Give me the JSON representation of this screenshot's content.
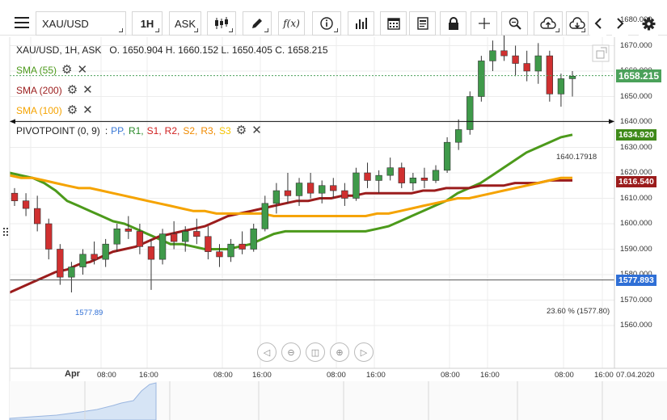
{
  "toolbar": {
    "symbol": "XAU/USD",
    "timeframe": "1H",
    "price_side": "ASK",
    "buttons": [
      "menu-icon",
      "candles-icon",
      "pencil-icon",
      "function-icon",
      "info-icon",
      "bars-icon",
      "calendar-icon",
      "document-icon",
      "lock-icon",
      "crosshair-icon",
      "zoom-icon",
      "cloud-upload-icon",
      "cloud-download-icon",
      "chevron-left-icon",
      "chevron-right-icon",
      "gear-icon"
    ],
    "function_label": "f(x)"
  },
  "header": {
    "instrument": "XAU/USD, 1H, ASK",
    "ohlc": "O. 1650.904  H. 1660.152  L. 1650.405  C. 1658.215"
  },
  "indicators": [
    {
      "label": "SMA (55)",
      "color": "#4c9a1b"
    },
    {
      "label": "SMA (200)",
      "color": "#9b1c1c"
    },
    {
      "label": "SMA (100)",
      "color": "#f5a300"
    },
    {
      "label": "PIVOTPOINT (0, 9)",
      "color": "#222"
    }
  ],
  "pivot_labels": [
    {
      "t": "PP",
      "c": "#3a78d6"
    },
    {
      "t": "R1",
      "c": "#2a8a2a"
    },
    {
      "t": "S1",
      "c": "#d02020"
    },
    {
      "t": "R2",
      "c": "#d02020"
    },
    {
      "t": "S2",
      "c": "#f08a00"
    },
    {
      "t": "R3",
      "c": "#f08a00"
    },
    {
      "t": "S3",
      "c": "#f5c400"
    }
  ],
  "price_axis": {
    "ticks": [
      "1680.000",
      "1670.000",
      "1660.000",
      "1650.000",
      "1640.000",
      "1630.000",
      "1620.000",
      "1610.000",
      "1600.000",
      "1590.000",
      "1580.000",
      "1570.000",
      "1560.000"
    ]
  },
  "price_tags": {
    "last": {
      "value": "1658.215",
      "color": "#4ba15a"
    },
    "sma55": {
      "value": "1634.920",
      "color": "#3f8a1a"
    },
    "sma200": {
      "value": "1616.540",
      "color": "#9b1c1c"
    },
    "fib": {
      "value": "1577.893",
      "color": "#2f6fd6"
    }
  },
  "annotations": {
    "hline": "1640.17918",
    "fib": "23.60 % (1577.80)",
    "fib_left": "1577.89"
  },
  "time_axis": {
    "labels": [
      "Apr",
      "08:00",
      "16:00",
      "08:00",
      "16:00",
      "08:00",
      "16:00",
      "08:00",
      "16:00",
      "08:00",
      "16:00",
      "07.04.2020"
    ]
  },
  "nav_buttons": [
    "◁",
    "⊖",
    "◫",
    "⊕",
    "▷"
  ],
  "colors": {
    "bull": "#3f9a4a",
    "bear": "#d03030",
    "grid": "#ececec"
  },
  "chart_data": {
    "type": "candlestick",
    "interval": "1H",
    "ylim": [
      1556,
      1684
    ],
    "series": [
      {
        "name": "SMA (55)",
        "values": [
          1620,
          1619,
          1618,
          1616,
          1613,
          1609,
          1607,
          1605,
          1603,
          1601,
          1600,
          1598,
          1596,
          1594,
          1592,
          1592,
          1591,
          1590,
          1590,
          1590,
          1591,
          1592,
          1594,
          1596,
          1597,
          1597,
          1597,
          1597,
          1597,
          1597,
          1597,
          1597,
          1598,
          1599,
          1601,
          1603,
          1605,
          1607,
          1609,
          1612,
          1614,
          1616,
          1619,
          1622,
          1625,
          1628,
          1630,
          1632,
          1634,
          1635
        ]
      },
      {
        "name": "SMA (200)",
        "values": [
          1573,
          1575,
          1577,
          1579,
          1581,
          1582,
          1584,
          1585,
          1587,
          1589,
          1590,
          1591,
          1593,
          1595,
          1596,
          1597,
          1598,
          1599,
          1601,
          1603,
          1604,
          1605,
          1606,
          1607,
          1608,
          1609,
          1609,
          1610,
          1610,
          1611,
          1611,
          1612,
          1612,
          1612,
          1612,
          1612,
          1613,
          1613,
          1614,
          1614,
          1614,
          1615,
          1615,
          1615,
          1616,
          1616,
          1616,
          1617,
          1617,
          1617
        ]
      },
      {
        "name": "SMA (100)",
        "values": [
          1619,
          1618,
          1618,
          1617,
          1616,
          1615,
          1614,
          1614,
          1613,
          1612,
          1611,
          1610,
          1609,
          1608,
          1607,
          1606,
          1605,
          1605,
          1604,
          1604,
          1604,
          1604,
          1604,
          1603,
          1603,
          1603,
          1603,
          1603,
          1603,
          1603,
          1603,
          1603,
          1604,
          1604,
          1605,
          1606,
          1607,
          1608,
          1609,
          1610,
          1610,
          1611,
          1612,
          1613,
          1614,
          1615,
          1616,
          1617,
          1618,
          1618
        ]
      }
    ],
    "candles": [
      [
        1612,
        1614,
        1607,
        1609
      ],
      [
        1609,
        1612,
        1603,
        1606
      ],
      [
        1606,
        1611,
        1597,
        1600
      ],
      [
        1600,
        1602,
        1586,
        1590
      ],
      [
        1590,
        1592,
        1576,
        1579
      ],
      [
        1579,
        1585,
        1573,
        1583
      ],
      [
        1583,
        1590,
        1580,
        1588
      ],
      [
        1588,
        1593,
        1584,
        1586
      ],
      [
        1586,
        1594,
        1583,
        1592
      ],
      [
        1592,
        1600,
        1589,
        1598
      ],
      [
        1598,
        1603,
        1594,
        1597
      ],
      [
        1597,
        1600,
        1588,
        1591
      ],
      [
        1591,
        1594,
        1574,
        1586
      ],
      [
        1586,
        1598,
        1584,
        1596
      ],
      [
        1596,
        1601,
        1590,
        1593
      ],
      [
        1593,
        1599,
        1589,
        1597
      ],
      [
        1597,
        1602,
        1592,
        1595
      ],
      [
        1595,
        1599,
        1586,
        1589
      ],
      [
        1589,
        1592,
        1583,
        1587
      ],
      [
        1587,
        1594,
        1585,
        1592
      ],
      [
        1592,
        1597,
        1588,
        1590
      ],
      [
        1590,
        1600,
        1589,
        1598
      ],
      [
        1598,
        1611,
        1597,
        1608
      ],
      [
        1608,
        1616,
        1604,
        1613
      ],
      [
        1613,
        1620,
        1608,
        1611
      ],
      [
        1611,
        1618,
        1607,
        1616
      ],
      [
        1616,
        1620,
        1610,
        1612
      ],
      [
        1612,
        1617,
        1608,
        1615
      ],
      [
        1615,
        1618,
        1610,
        1613
      ],
      [
        1613,
        1616,
        1607,
        1610
      ],
      [
        1610,
        1622,
        1609,
        1620
      ],
      [
        1620,
        1624,
        1614,
        1617
      ],
      [
        1617,
        1621,
        1612,
        1619
      ],
      [
        1619,
        1626,
        1617,
        1622
      ],
      [
        1622,
        1624,
        1614,
        1616
      ],
      [
        1616,
        1620,
        1613,
        1618
      ],
      [
        1618,
        1622,
        1614,
        1617
      ],
      [
        1617,
        1623,
        1616,
        1621
      ],
      [
        1621,
        1634,
        1620,
        1632
      ],
      [
        1632,
        1641,
        1629,
        1637
      ],
      [
        1637,
        1652,
        1635,
        1650
      ],
      [
        1650,
        1666,
        1648,
        1664
      ],
      [
        1664,
        1672,
        1660,
        1668
      ],
      [
        1668,
        1677,
        1664,
        1666
      ],
      [
        1666,
        1670,
        1658,
        1663
      ],
      [
        1663,
        1668,
        1656,
        1660
      ],
      [
        1660,
        1671,
        1655,
        1666
      ],
      [
        1666,
        1668,
        1648,
        1651
      ],
      [
        1651,
        1659,
        1646,
        1657
      ],
      [
        1657,
        1660,
        1650,
        1658
      ]
    ]
  }
}
